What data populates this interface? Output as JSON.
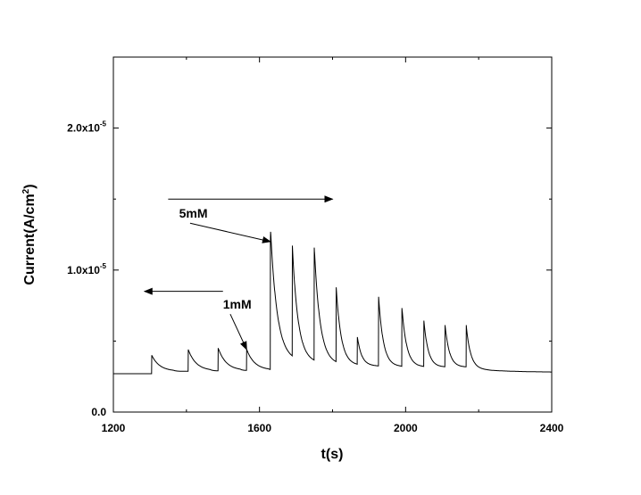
{
  "chart_data": {
    "type": "line",
    "title": "",
    "xlabel": "t(s)",
    "ylabel": {
      "base": "Current(A/cm",
      "sup": "2",
      "close": ")"
    },
    "xlim": [
      1200,
      2400
    ],
    "ylim": [
      0,
      2.5e-05
    ],
    "x_ticks": [
      {
        "value": 1200,
        "label": "1200"
      },
      {
        "value": 1600,
        "label": "1600"
      },
      {
        "value": 2000,
        "label": "2000"
      },
      {
        "value": 2400,
        "label": "2400"
      }
    ],
    "y_ticks": [
      {
        "value": 0,
        "mantissa": "0.0",
        "exp": ""
      },
      {
        "value": 1e-05,
        "mantissa": "1.0x10",
        "exp": "-5"
      },
      {
        "value": 2e-05,
        "mantissa": "2.0x10",
        "exp": "-5"
      }
    ],
    "grid": false,
    "legend": "none",
    "baseline": {
      "t_start": 1200,
      "y_start": 2.7e-06,
      "y_step": 2.65e-06,
      "y_end_at_2160": 3.1e-06,
      "t_end": 2400,
      "y_end": 2.8e-06
    },
    "series": [
      {
        "color": "#000000",
        "spikes": [
          {
            "t": 1305,
            "peak": 4e-06,
            "tau": 22
          },
          {
            "t": 1405,
            "peak": 4.4e-06,
            "tau": 22
          },
          {
            "t": 1487,
            "peak": 4.5e-06,
            "tau": 22
          },
          {
            "t": 1565,
            "peak": 4.4e-06,
            "tau": 22
          },
          {
            "t": 1630,
            "peak": 1.2e-05,
            "tau": 18
          },
          {
            "t": 1690,
            "peak": 1.14e-05,
            "tau": 16
          },
          {
            "t": 1750,
            "peak": 1.14e-05,
            "tau": 16
          },
          {
            "t": 1810,
            "peak": 8.6e-06,
            "tau": 14
          },
          {
            "t": 1868,
            "peak": 5.2e-06,
            "tau": 12
          },
          {
            "t": 1926,
            "peak": 8.1e-06,
            "tau": 13
          },
          {
            "t": 1990,
            "peak": 7.3e-06,
            "tau": 13
          },
          {
            "t": 2050,
            "peak": 6.4e-06,
            "tau": 12
          },
          {
            "t": 2108,
            "peak": 6.1e-06,
            "tau": 12
          },
          {
            "t": 2166,
            "peak": 6.1e-06,
            "tau": 12
          }
        ]
      }
    ],
    "annotations": [
      {
        "label": "5mM",
        "text_t": 1380,
        "text_y": 1.37e-05,
        "arrow_from": [
          1410,
          1.33e-05
        ],
        "arrow_to": [
          1630,
          1.2e-05
        ]
      },
      {
        "label": "1mM",
        "text_t": 1500,
        "text_y": 7.3e-06,
        "arrow_from": [
          1520,
          6.9e-06
        ],
        "arrow_to": [
          1565,
          4.4e-06
        ]
      },
      {
        "label": "",
        "arrow_from": [
          1350,
          1.5e-05
        ],
        "arrow_to": [
          1800,
          1.5e-05
        ],
        "direction": "right"
      },
      {
        "label": "",
        "arrow_from": [
          1500,
          8.5e-06
        ],
        "arrow_to": [
          1285,
          8.5e-06
        ],
        "direction": "left"
      }
    ]
  }
}
